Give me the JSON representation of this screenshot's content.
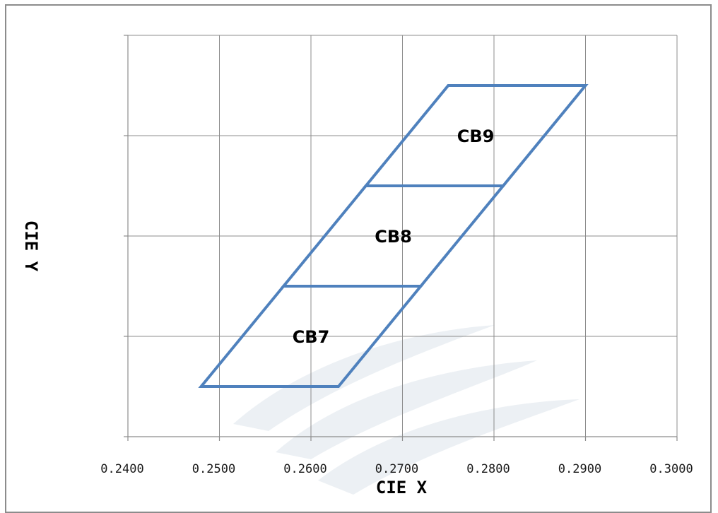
{
  "chart_data": {
    "type": "scatter",
    "title": "",
    "xlabel": "CIE X",
    "ylabel": "CIE Y",
    "xlim": [
      0.24,
      0.3
    ],
    "ylim": [
      0.2,
      0.35
    ],
    "x_ticks": [
      0.24,
      0.25,
      0.26,
      0.27,
      0.28,
      0.29,
      0.3
    ],
    "x_tick_labels": [
      "0.2400",
      "0.2500",
      "0.2600",
      "0.2700",
      "0.2800",
      "0.2900",
      "0.3000"
    ],
    "y_gridlines": [
      0.2,
      0.25,
      0.3,
      0.35
    ],
    "y_tick_labels_shown": false,
    "grid": true,
    "line_color": "#4f81bd",
    "regions": [
      {
        "name": "CB7",
        "points": [
          [
            0.248,
            0.225
          ],
          [
            0.263,
            0.225
          ],
          [
            0.272,
            0.275
          ],
          [
            0.257,
            0.275
          ]
        ]
      },
      {
        "name": "CB8",
        "points": [
          [
            0.257,
            0.275
          ],
          [
            0.272,
            0.275
          ],
          [
            0.281,
            0.325
          ],
          [
            0.266,
            0.325
          ]
        ]
      },
      {
        "name": "CB9",
        "points": [
          [
            0.266,
            0.325
          ],
          [
            0.281,
            0.325
          ],
          [
            0.29,
            0.375
          ],
          [
            0.275,
            0.375
          ]
        ]
      }
    ]
  }
}
